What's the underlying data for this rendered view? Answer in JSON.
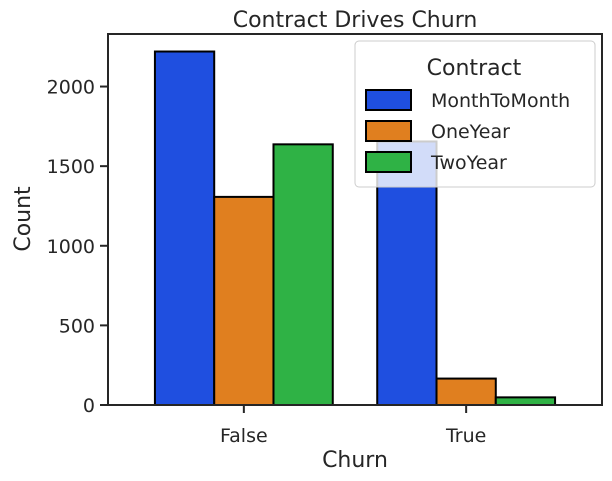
{
  "chart_data": {
    "type": "bar",
    "title": "Contract Drives Churn",
    "xlabel": "Churn",
    "ylabel": "Count",
    "categories": [
      "False",
      "True"
    ],
    "ylim": [
      0,
      2330
    ],
    "yticks": [
      0,
      500,
      1000,
      1500,
      2000
    ],
    "ytick_labels": [
      "0",
      "500",
      "1000",
      "1500",
      "2000"
    ],
    "grid": false,
    "legend": {
      "title": "Contract",
      "placement": "top-right"
    },
    "series": [
      {
        "name": "MonthToMonth",
        "values": [
          2220,
          1655
        ],
        "color": "#1f4fe0"
      },
      {
        "name": "OneYear",
        "values": [
          1307,
          166
        ],
        "color": "#e07f1f"
      },
      {
        "name": "TwoYear",
        "values": [
          1637,
          48
        ],
        "color": "#2fb245"
      }
    ]
  }
}
